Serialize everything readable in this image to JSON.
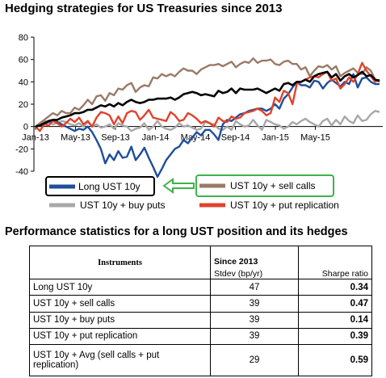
{
  "title": "Hedging strategies for US Treasuries since 2013",
  "chart_data": {
    "type": "line",
    "title": "Hedging strategies for US Treasuries since 2013",
    "xlabel": "",
    "ylabel": "",
    "ylim": [
      -40,
      80
    ],
    "yticks": [
      -40,
      -20,
      0,
      20,
      40,
      60,
      80
    ],
    "xticks": [
      "Jan-13",
      "May-13",
      "Sep-13",
      "Jan-14",
      "May-14",
      "Sep-14",
      "Jan-15",
      "May-15"
    ],
    "grid": false,
    "legend_placement": "bottom",
    "series": [
      {
        "name": "Long UST 10y",
        "color": "#1f4e9a",
        "values": [
          0,
          1,
          2,
          4,
          6,
          4,
          2,
          0,
          -2,
          -4,
          -2,
          -3,
          0,
          -5,
          -12,
          -20,
          -33,
          -25,
          -30,
          -22,
          -28,
          -27,
          -18,
          -30,
          -25,
          -19,
          -28,
          -36,
          -45,
          -38,
          -30,
          -25,
          -20,
          -18,
          -12,
          -15,
          -10,
          -5,
          -8,
          -3,
          -3,
          -7,
          -12,
          2,
          6,
          5,
          8,
          11,
          12,
          14,
          15,
          16,
          16,
          14,
          16,
          20,
          16,
          25,
          29,
          35,
          40,
          37,
          37,
          35,
          41,
          40,
          34,
          39,
          42,
          39,
          36,
          40,
          38,
          47,
          35,
          43,
          44,
          40,
          38,
          38
        ]
      },
      {
        "name": "UST 10y + sell calls",
        "color": "#9a7a66",
        "values": [
          0,
          3,
          6,
          9,
          12,
          10,
          14,
          12,
          12,
          17,
          15,
          19,
          24,
          20,
          27,
          28,
          23,
          30,
          28,
          34,
          33,
          37,
          39,
          31,
          35,
          37,
          36,
          44,
          43,
          47,
          45,
          47,
          45,
          49,
          52,
          50,
          50,
          47,
          51,
          53,
          55,
          55,
          56,
          54,
          56,
          58,
          53,
          56,
          58,
          57,
          61,
          57,
          59,
          59,
          60,
          56,
          55,
          58,
          59,
          56,
          56,
          51,
          53,
          45,
          50,
          54,
          53,
          55,
          51,
          54,
          45,
          48,
          50,
          52,
          48,
          47,
          53,
          50,
          42,
          40
        ]
      },
      {
        "name": "UST 10y + buy puts",
        "color": "#a8a8a8",
        "values": [
          0,
          2,
          5,
          4,
          2,
          3,
          5,
          4,
          2,
          1,
          3,
          0,
          4,
          0,
          2,
          -1,
          0,
          2,
          -2,
          3,
          1,
          0,
          -4,
          -2,
          -1,
          3,
          -3,
          0,
          5,
          0,
          -2,
          -3,
          -1,
          3,
          0,
          1,
          -1,
          -3,
          -2,
          4,
          3,
          2,
          -2,
          -3,
          0,
          -3,
          5,
          2,
          0,
          1,
          6,
          1,
          -3,
          6,
          4,
          2,
          1,
          -2,
          0,
          4,
          2,
          5,
          7,
          4,
          2,
          0,
          5,
          7,
          1,
          6,
          2,
          9,
          5,
          3,
          10,
          5,
          6,
          11,
          14,
          13
        ]
      },
      {
        "name": "UST 10y + put replication",
        "color": "#e0432b",
        "values": [
          0,
          -4,
          2,
          1,
          5,
          3,
          0,
          3,
          7,
          4,
          8,
          2,
          5,
          0,
          8,
          13,
          12,
          10,
          2,
          9,
          3,
          12,
          14,
          13,
          6,
          10,
          15,
          8,
          7,
          6,
          5,
          13,
          10,
          5,
          6,
          12,
          10,
          7,
          3,
          5,
          3,
          0,
          8,
          5,
          4,
          9,
          7,
          8,
          12,
          13,
          14,
          16,
          14,
          10,
          12,
          26,
          22,
          32,
          30,
          20,
          38,
          40,
          42,
          44,
          45,
          44,
          47,
          49,
          41,
          43,
          34,
          38,
          44,
          40,
          47,
          57,
          50,
          45,
          40,
          42
        ]
      },
      {
        "name": "UST 10y + Avg (sell calls + put replication)",
        "color": "#000000",
        "values": [
          0,
          1,
          3,
          5,
          6,
          6,
          8,
          9,
          10,
          12,
          12,
          13,
          15,
          15,
          17,
          19,
          18,
          20,
          18,
          21,
          19,
          22,
          24,
          22,
          21,
          22,
          24,
          24,
          25,
          25,
          25,
          26,
          24,
          26,
          29,
          30,
          31,
          30,
          28,
          29,
          28,
          27,
          32,
          30,
          31,
          34,
          30,
          34,
          33,
          33,
          33,
          34,
          32,
          30,
          32,
          34,
          32,
          38,
          39,
          37,
          40,
          40,
          42,
          40,
          45,
          47,
          48,
          49,
          44,
          47,
          41,
          45,
          47,
          44,
          46,
          49,
          45,
          46,
          42,
          41
        ]
      }
    ]
  },
  "table": {
    "title": "Performance statistics for a long UST position and its hedges",
    "headers": {
      "instruments": "Instruments",
      "since": "Since 2013",
      "stdev": "Stdev (bp/yr)",
      "sharpe": "Sharpe ratio"
    },
    "rows": [
      {
        "name": "Long UST 10y",
        "stdev": "47",
        "sharpe": "0.34"
      },
      {
        "name": "UST 10y + sell calls",
        "stdev": "39",
        "sharpe": "0.47"
      },
      {
        "name": "UST 10y + buy puts",
        "stdev": "39",
        "sharpe": "0.14"
      },
      {
        "name": "UST 10y + put replication",
        "stdev": "39",
        "sharpe": "0.39"
      },
      {
        "name": "UST 10y + Avg (sell calls + put replication)",
        "stdev": "29",
        "sharpe": "0.59"
      }
    ]
  },
  "legend": [
    {
      "label": "Long UST  10y",
      "color": "#1f4e9a",
      "box_color": "#000000"
    },
    {
      "label": "UST 10y + sell calls",
      "color": "#9a7a66",
      "box_color": "#3fb24a"
    },
    {
      "label": "UST 10y + buy puts",
      "color": "#a8a8a8"
    },
    {
      "label": "UST 10y + put replication",
      "color": "#e0432b"
    }
  ],
  "annotation_arrow_color": "#3fb24a"
}
